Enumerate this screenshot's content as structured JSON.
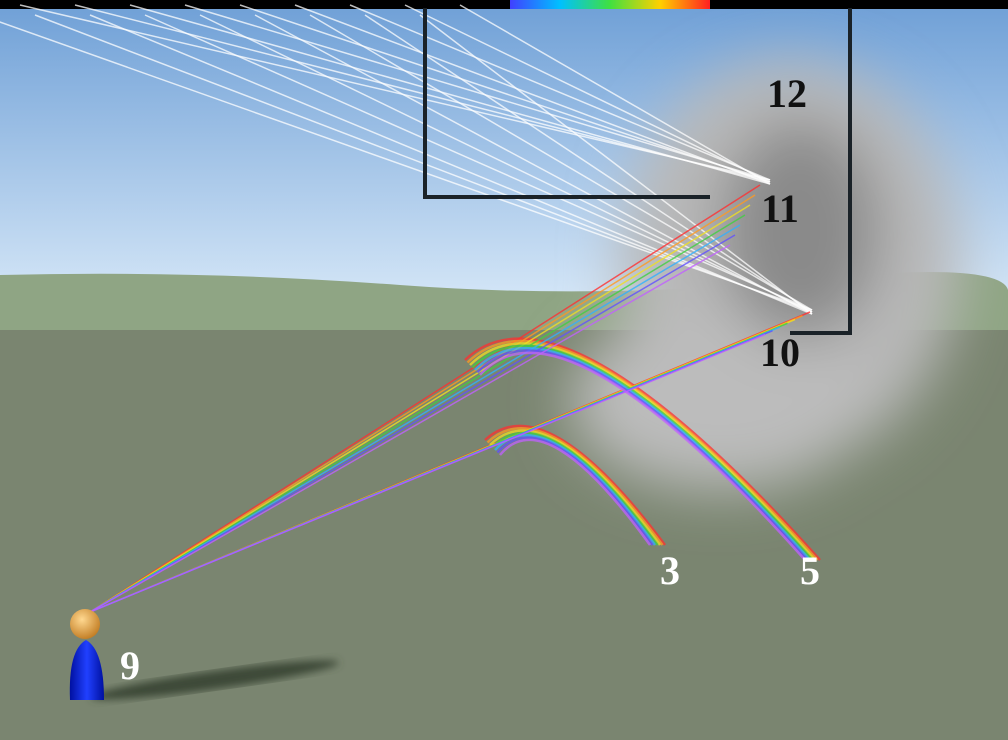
{
  "labels": [
    "12",
    "11",
    "10",
    "3",
    "5",
    "9"
  ]
}
